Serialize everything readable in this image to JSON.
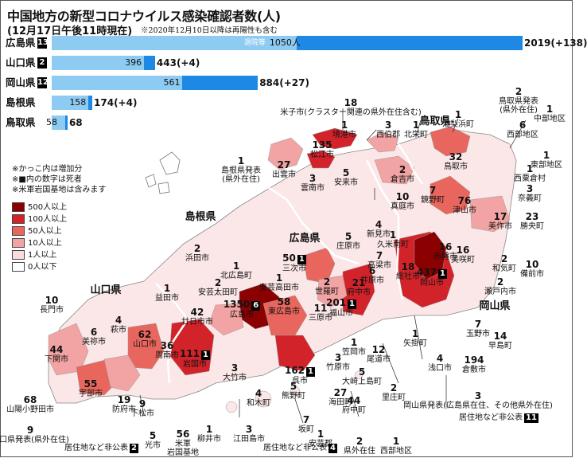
{
  "title": "中国地方の新型コロナウイルス感染確認者数(人)",
  "subtitle": "(12月17日午後11時現在)",
  "note": "※2020年12月10日以降は再陽性も含む",
  "colors": {
    "total": "#1e88e5",
    "recovered": "#8ecbf2",
    "c500": "#8b0000",
    "c100": "#d2232a",
    "c50": "#e8665e",
    "c10": "#f2a3a3",
    "c1": "#fadcdc",
    "c0": "#ffffff"
  },
  "bars": [
    {
      "pref": "広島県",
      "deaths": "13",
      "recovered": 1050,
      "recovered_text": "1050人",
      "recovered_prefix": "退院等",
      "total": 2019,
      "total_text": "2019(+138)"
    },
    {
      "pref": "山口県",
      "deaths": "2",
      "recovered": 396,
      "recovered_text": "396",
      "recovered_prefix": "",
      "total": 443,
      "total_text": "443(+4)"
    },
    {
      "pref": "岡山県",
      "deaths": "12",
      "recovered": 561,
      "recovered_text": "561",
      "recovered_prefix": "",
      "total": 884,
      "total_text": "884(+27)"
    },
    {
      "pref": "島根県",
      "deaths": "",
      "recovered": 158,
      "recovered_text": "158",
      "recovered_prefix": "",
      "total": 174,
      "total_text": "174(+4)"
    },
    {
      "pref": "鳥取県",
      "deaths": "",
      "recovered": 58,
      "recovered_text": "58",
      "recovered_prefix": "",
      "total": 68,
      "total_text": "68"
    }
  ],
  "legend": {
    "notes": [
      "※かっこ内は増加分",
      "※■内の数字は死者",
      "※米軍岩国基地は含みます"
    ],
    "items": [
      {
        "label": "500人以上",
        "color": "#8b0000"
      },
      {
        "label": "100人以上",
        "color": "#d2232a"
      },
      {
        "label": "50人以上",
        "color": "#e8665e"
      },
      {
        "label": "10人以上",
        "color": "#f2a3a3"
      },
      {
        "label": "1人以上",
        "color": "#fadcdc"
      },
      {
        "label": "0人以下",
        "color": "#ffffff"
      }
    ]
  },
  "prefecture_names": {
    "shimane": "島根県",
    "tottori": "鳥取県",
    "hiroshima": "広島県",
    "yamaguchi": "山口県",
    "okayama": "岡山県"
  },
  "places": [
    {
      "n": "18",
      "t": "米子市(クラスター関連の県外在住含む)"
    },
    {
      "n": "1",
      "t": "境港市"
    },
    {
      "n": "3",
      "t": "西伯郡"
    },
    {
      "n": "1",
      "t": "北栄町"
    },
    {
      "n": "1",
      "t": "湯梨浜町"
    },
    {
      "n": "2",
      "t": "鳥取県発表\n(県外在住)"
    },
    {
      "n": "1",
      "t": "中部地区"
    },
    {
      "n": "6",
      "t": "西部地区"
    },
    {
      "n": "1",
      "t": "東部地区"
    },
    {
      "n": "1",
      "t": "西粟倉村"
    },
    {
      "n": "3",
      "t": "奈義町"
    },
    {
      "n": "135",
      "t": "松江市"
    },
    {
      "n": "32",
      "t": "鳥取市"
    },
    {
      "n": "1",
      "t": "島根県発表\n(県外在住)"
    },
    {
      "n": "27",
      "t": "出雲市"
    },
    {
      "n": "3",
      "t": "雲南市"
    },
    {
      "n": "5",
      "t": "安来市"
    },
    {
      "n": "2",
      "t": "倉吉市"
    },
    {
      "n": "7",
      "t": "鏡野町"
    },
    {
      "n": "10",
      "t": "真庭市"
    },
    {
      "n": "76",
      "t": "津山市"
    },
    {
      "n": "17",
      "t": "美作市"
    },
    {
      "n": "23",
      "t": "勝央町"
    },
    {
      "n": "4",
      "t": "新見市"
    },
    {
      "n": "1",
      "t": "久米南町"
    },
    {
      "n": "5",
      "t": "庄原市"
    },
    {
      "n": "16",
      "t": "美咲町"
    },
    {
      "n": "2",
      "t": "和気町"
    },
    {
      "n": "10",
      "t": "備前市"
    },
    {
      "n": "2",
      "t": "浜田市"
    },
    {
      "n": "1",
      "t": "北広島町"
    },
    {
      "n": "50",
      "t": "三次市",
      "d": "1"
    },
    {
      "n": "7",
      "t": "高梁市"
    },
    {
      "n": "16",
      "t": "赤磐市"
    },
    {
      "n": "18",
      "t": "総社市"
    },
    {
      "n": "437",
      "t": "岡山市",
      "d": "1"
    },
    {
      "n": "2",
      "t": "瀬戸内市"
    },
    {
      "n": "2",
      "t": "安芸太田町"
    },
    {
      "n": "1",
      "t": "安芸高田市"
    },
    {
      "n": "2",
      "t": "世羅町"
    },
    {
      "n": "21",
      "t": "府中市"
    },
    {
      "n": "6",
      "t": "井原市"
    },
    {
      "n": "1",
      "t": "益田市"
    },
    {
      "n": "10",
      "t": "長門市"
    },
    {
      "n": "1350",
      "t": "広島市",
      "d": "6"
    },
    {
      "n": "58",
      "t": "東広島市"
    },
    {
      "n": "11",
      "t": "三原市"
    },
    {
      "n": "201",
      "t": "福山市",
      "d": "1"
    },
    {
      "n": "4",
      "t": "萩市"
    },
    {
      "n": "42",
      "t": "廿日市市"
    },
    {
      "n": "7",
      "t": "玉野市"
    },
    {
      "n": "14",
      "t": "早島町"
    },
    {
      "n": "44",
      "t": "下関市"
    },
    {
      "n": "6",
      "t": "美祢市"
    },
    {
      "n": "62",
      "t": "山口市"
    },
    {
      "n": "36",
      "t": "周南市"
    },
    {
      "n": "111",
      "t": "岩国市",
      "d": "1"
    },
    {
      "n": "1",
      "t": "笠岡市"
    },
    {
      "n": "1",
      "t": "矢掛町"
    },
    {
      "n": "12",
      "t": "尾道市"
    },
    {
      "n": "3",
      "t": "竹原市"
    },
    {
      "n": "4",
      "t": "浅口市"
    },
    {
      "n": "194",
      "t": "倉敷市"
    },
    {
      "n": "55",
      "t": "宇部市"
    },
    {
      "n": "3",
      "t": "大竹市"
    },
    {
      "n": "162",
      "t": "呉市",
      "d": "1"
    },
    {
      "n": "5",
      "t": "大崎上島町"
    },
    {
      "n": "2",
      "t": "里庄町"
    },
    {
      "n": "19",
      "t": "防府市"
    },
    {
      "n": "9",
      "t": "下松市"
    },
    {
      "n": "5",
      "t": "熊野町"
    },
    {
      "n": "27",
      "t": "海田町"
    },
    {
      "n": "44",
      "t": "府中町"
    },
    {
      "n": "68",
      "t": "山陽小野田市"
    },
    {
      "n": "4",
      "t": "和木町"
    },
    {
      "n": "3",
      "t": "岡山県発表(広島県在住、その他県外在住)"
    },
    {
      "n": "9",
      "t": "山口県発表(県外在住)"
    },
    {
      "n": "5",
      "t": "光市"
    },
    {
      "n": "56",
      "t": "米軍\n岩国基地"
    },
    {
      "n": "1",
      "t": "柳井市"
    },
    {
      "n": "3",
      "t": "江田島市"
    },
    {
      "n": "7",
      "t": "坂町"
    },
    {
      "n": "1",
      "t": "安芸郡"
    },
    {
      "n": "2",
      "t": "県外在住"
    },
    {
      "n": "1",
      "t": "西部地区"
    }
  ],
  "footnotes": [
    {
      "t": "居住地など非公表",
      "d": "2"
    },
    {
      "t": "居住地など非公表",
      "d": "4"
    },
    {
      "t": "居住地など非公表",
      "d": "11"
    }
  ]
}
